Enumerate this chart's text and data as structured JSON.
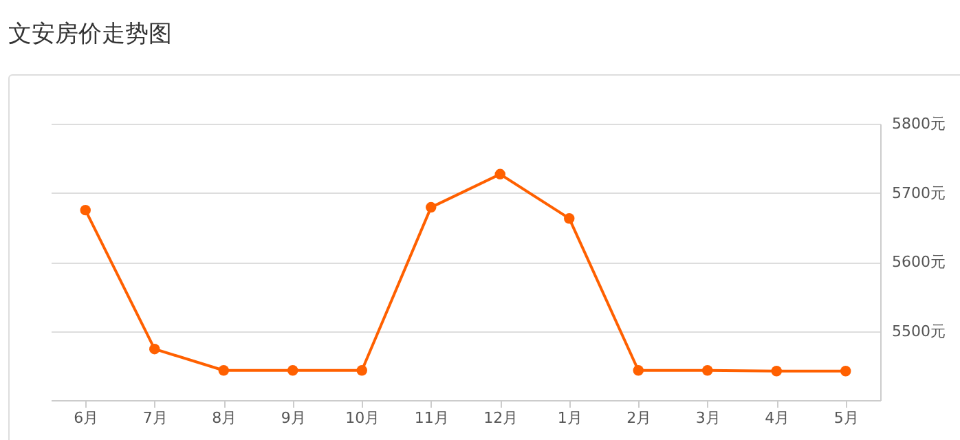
{
  "chart_data": {
    "type": "line",
    "title": "文安房价走势图",
    "categories": [
      "6月",
      "7月",
      "8月",
      "9月",
      "10月",
      "11月",
      "12月",
      "1月",
      "2月",
      "3月",
      "4月",
      "5月"
    ],
    "series": [
      {
        "color": "#ff6000",
        "values": [
          5675,
          5474,
          5443,
          5443,
          5443,
          5679,
          5727,
          5663,
          5443,
          5443,
          5442,
          5442
        ]
      }
    ],
    "ylim": [
      5400,
      5800
    ],
    "yticks": [
      {
        "value": 5500,
        "label": "5500元"
      },
      {
        "value": 5600,
        "label": "5600元"
      },
      {
        "value": 5700,
        "label": "5700元"
      },
      {
        "value": 5800,
        "label": "5800元"
      }
    ],
    "grid": "y",
    "legend": false,
    "marker": "circle",
    "line_style": "solid"
  }
}
